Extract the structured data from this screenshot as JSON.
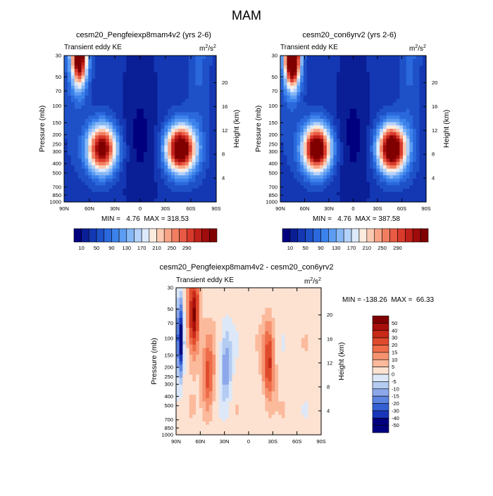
{
  "figure_title": "MAM",
  "chart_data": [
    {
      "type": "heatmap",
      "title": "cesm20_Pengfeiexp8mam4v2 (yrs 2-6)",
      "left_label": "Transient eddy KE",
      "units": "m2/s2",
      "ylabel": "Pressure (mb)",
      "y2label": "Height (km)",
      "x_ticks": [
        "90N",
        "60N",
        "30N",
        "0",
        "30S",
        "60S",
        "90S"
      ],
      "x_range": [
        90,
        -90
      ],
      "y_ticks": [
        30,
        50,
        70,
        100,
        150,
        200,
        250,
        300,
        400,
        500,
        700,
        850,
        1000
      ],
      "height_ticks": [
        4,
        8,
        12,
        16,
        20
      ],
      "stats_text": "MIN =   4.76  MAX = 318.53",
      "min": 4.76,
      "max": 318.53,
      "features": [
        {
          "lat": 72,
          "p": 30,
          "value": 300
        },
        {
          "lat": 45,
          "p": 280,
          "value": 270
        },
        {
          "lat": -48,
          "p": 280,
          "value": 305
        }
      ],
      "colorbar_labels": [
        "10",
        "50",
        "90",
        "130",
        "170",
        "210",
        "250",
        "290"
      ]
    },
    {
      "type": "heatmap",
      "title": "cesm20_con6yrv2 (yrs 2-6)",
      "left_label": "Transient eddy KE",
      "units": "m2/s2",
      "ylabel": "Pressure (mb)",
      "y2label": "Height (km)",
      "x_ticks": [
        "90N",
        "60N",
        "30N",
        "0",
        "30S",
        "60S",
        "90S"
      ],
      "x_range": [
        90,
        -90
      ],
      "y_ticks": [
        30,
        50,
        70,
        100,
        150,
        200,
        250,
        300,
        400,
        500,
        700,
        850,
        1000
      ],
      "height_ticks": [
        4,
        8,
        12,
        16,
        20
      ],
      "stats_text": "MIN =   4.76  MAX = 387.58",
      "min": 4.76,
      "max": 387.58,
      "features": [
        {
          "lat": 75,
          "p": 30,
          "value": 380
        },
        {
          "lat": 45,
          "p": 280,
          "value": 300
        },
        {
          "lat": -48,
          "p": 280,
          "value": 320
        }
      ],
      "colorbar_labels": [
        "10",
        "50",
        "90",
        "130",
        "170",
        "210",
        "250",
        "290"
      ]
    },
    {
      "type": "heatmap",
      "title": "cesm20_Pengfeiexp8mam4v2 - cesm20_con6yrv2",
      "left_label": "Transient eddy KE",
      "units": "m2/s2",
      "ylabel": "Pressure (mb)",
      "y2label": "Height (km)",
      "x_ticks": [
        "90N",
        "60N",
        "30N",
        "0",
        "30S",
        "60S",
        "90S"
      ],
      "x_range": [
        90,
        -90
      ],
      "y_ticks": [
        30,
        50,
        70,
        100,
        150,
        200,
        250,
        300,
        400,
        500,
        700,
        850,
        1000
      ],
      "height_ticks": [
        4,
        8,
        12,
        16,
        20
      ],
      "stats_text": "MIN = -138.26  MAX =  66.33",
      "min": -138.26,
      "max": 66.33,
      "features": [
        {
          "lat": 85,
          "p": 100,
          "value": -60
        },
        {
          "lat": 68,
          "p": 60,
          "value": 50
        },
        {
          "lat": 50,
          "p": 250,
          "value": 30
        },
        {
          "lat": -25,
          "p": 180,
          "value": 35
        },
        {
          "lat": 28,
          "p": 200,
          "value": -25
        }
      ],
      "colorbar_labels": [
        "50",
        "40",
        "30",
        "20",
        "15",
        "10",
        "5",
        "0",
        "-5",
        "-10",
        "-15",
        "-20",
        "-30",
        "-40",
        "-50"
      ]
    }
  ],
  "colors": {
    "seq_scale": [
      "#00007f",
      "#0a1e96",
      "#1438b4",
      "#1e50c8",
      "#2a68dc",
      "#3c82ec",
      "#5c9cf2",
      "#86b8f6",
      "#b4d2fa",
      "#dceafc",
      "#fcece0",
      "#fccab2",
      "#f8a486",
      "#f27e62",
      "#e85a44",
      "#d83a2c",
      "#c0201a",
      "#a00c0c",
      "#800000"
    ],
    "div_scale": [
      "#7f0000",
      "#a8100c",
      "#c82a18",
      "#e04a2c",
      "#ee6c48",
      "#f69270",
      "#fcba9c",
      "#fde2d2",
      "#dce8f8",
      "#b4ccf2",
      "#8ca8ea",
      "#5c84e0",
      "#3460d4",
      "#1836b8",
      "#00007f"
    ]
  }
}
